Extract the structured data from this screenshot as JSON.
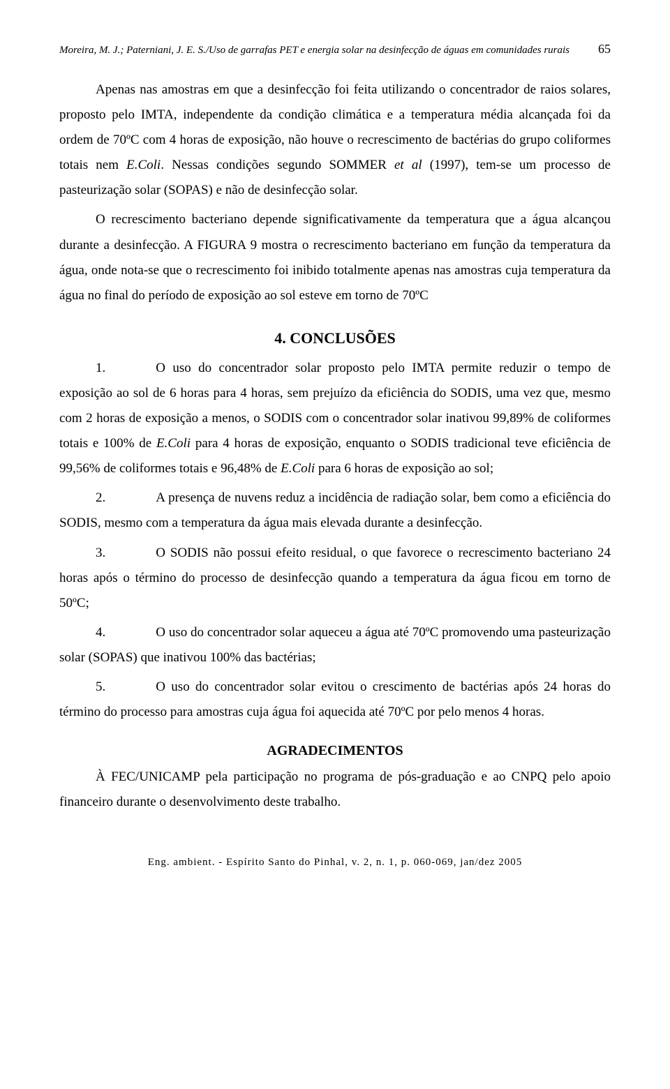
{
  "header": {
    "running": "Moreira, M. J.; Paterniani, J. E. S./Uso de garrafas PET e energia solar na desinfecção de águas em comunidades rurais",
    "page_number": "65"
  },
  "paragraphs": {
    "p1_a": "Apenas nas amostras em que a desinfecção foi feita utilizando o concentrador de raios solares, proposto pelo IMTA, independente da condição climática e a temperatura média alcançada foi da ordem de 70ºC com 4 horas de exposição, não houve o recrescimento de bactérias do grupo coliformes totais nem ",
    "p1_ecoli": "E.Coli",
    "p1_b": ". Nessas condições segundo SOMMER ",
    "p1_etal": "et al",
    "p1_c": " (1997), tem-se um processo de pasteurização solar (SOPAS) e não de desinfecção solar.",
    "p2": "O recrescimento bacteriano depende significativamente da temperatura que a água alcançou durante a desinfecção. A FIGURA 9 mostra o recrescimento bacteriano em função da temperatura da água, onde nota-se que o recrescimento foi inibido totalmente apenas nas amostras cuja temperatura da água no final do período de exposição ao sol esteve em torno de 70ºC"
  },
  "conclusoes": {
    "title": "4. CONCLUSÕES",
    "items": [
      {
        "num": "1.",
        "a": "O uso do concentrador solar proposto pelo IMTA permite reduzir o tempo de exposição ao sol de 6 horas para 4 horas, sem prejuízo da eficiência do SODIS, uma vez que, mesmo com 2 horas de exposição a menos, o SODIS com o concentrador solar inativou 99,89% de coliformes totais e 100% de ",
        "ecoli1": "E.Coli",
        "b": " para 4 horas de exposição, enquanto o SODIS tradicional teve eficiência de 99,56% de coliformes totais e 96,48% de ",
        "ecoli2": "E.Coli",
        "c": " para 6 horas de exposição ao sol;"
      },
      {
        "num": "2.",
        "a": "A presença de nuvens reduz a incidência de radiação solar, bem como a eficiência do SODIS, mesmo com a temperatura da água mais elevada durante a desinfecção."
      },
      {
        "num": "3.",
        "a": "O SODIS não possui efeito residual, o que favorece o recrescimento bacteriano 24 horas após o término do processo de desinfecção quando a temperatura da água ficou em torno de 50ºC;"
      },
      {
        "num": "4.",
        "a": "O uso do concentrador solar aqueceu a água até 70ºC promovendo uma pasteurização solar (SOPAS) que inativou 100% das bactérias;"
      },
      {
        "num": "5.",
        "a": "O uso do concentrador solar evitou o crescimento de bactérias após 24 horas do término do processo para amostras cuja água foi aquecida até 70ºC por pelo menos 4 horas."
      }
    ]
  },
  "agradecimentos": {
    "title": "AGRADECIMENTOS",
    "text": "À FEC/UNICAMP pela participação no programa de pós-graduação e ao CNPQ pelo apoio financeiro durante o desenvolvimento deste trabalho."
  },
  "footer": {
    "text": "Eng. ambient. - Espírito Santo do Pinhal, v. 2, n. 1, p. 060-069, jan/dez 2005"
  }
}
